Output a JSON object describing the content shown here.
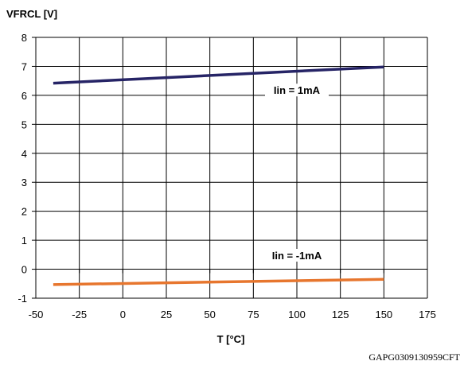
{
  "chart_data": {
    "type": "line",
    "title": "",
    "ylabel": "VFRCL [V]",
    "xlabel": "T [°C]",
    "xlim": [
      -50,
      175
    ],
    "ylim": [
      -1,
      8
    ],
    "xticks": [
      -50,
      -25,
      0,
      25,
      50,
      75,
      100,
      125,
      150,
      175
    ],
    "yticks": [
      -1,
      0,
      1,
      2,
      3,
      4,
      5,
      6,
      7,
      8
    ],
    "grid": true,
    "series": [
      {
        "name": "Iin = 1mA",
        "color": "#262466",
        "x": [
          -40,
          150
        ],
        "y": [
          6.42,
          6.98
        ]
      },
      {
        "name": "Iin = -1mA",
        "color": "#E7762E",
        "x": [
          -40,
          150
        ],
        "y": [
          -0.53,
          -0.35
        ]
      }
    ],
    "annotations": [
      {
        "text": "Iin = 1mA",
        "x": 100,
        "y": 6.1
      },
      {
        "text": "Iin = -1mA",
        "x": 100,
        "y": 0.4
      }
    ]
  },
  "footer": {
    "code": "GAPG0309130959CFT"
  }
}
